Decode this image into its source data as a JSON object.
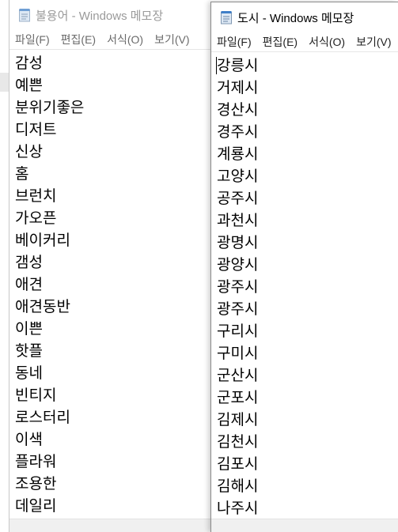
{
  "windows": [
    {
      "title": "불용어 - Windows 메모장",
      "menu": [
        "파일(F)",
        "편집(E)",
        "서식(O)",
        "보기(V)"
      ],
      "lines": [
        "감성",
        "예쁜",
        "분위기좋은",
        "디저트",
        "신상",
        "홈",
        "브런치",
        "가오픈",
        "베이커리",
        "갬성",
        "애견",
        "애견동반",
        "이쁜",
        "핫플",
        "동네",
        "빈티지",
        "로스터리",
        "이색",
        "플라워",
        "조용한",
        "데일리"
      ]
    },
    {
      "title": "도시 - Windows 메모장",
      "menu": [
        "파일(F)",
        "편집(E)",
        "서식(O)",
        "보기(V)"
      ],
      "lines": [
        "강릉시",
        "거제시",
        "경산시",
        "경주시",
        "계룡시",
        "고양시",
        "공주시",
        "과천시",
        "광명시",
        "광양시",
        "광주시",
        "광주시",
        "구리시",
        "구미시",
        "군산시",
        "군포시",
        "김제시",
        "김천시",
        "김포시",
        "김해시",
        "나주시"
      ]
    }
  ],
  "icons": {
    "notepad": "notepad-icon"
  },
  "colors": {
    "inactive_title": "#9a9a9a",
    "active_title": "#000000",
    "scrollbar": "#f0f0f0"
  }
}
